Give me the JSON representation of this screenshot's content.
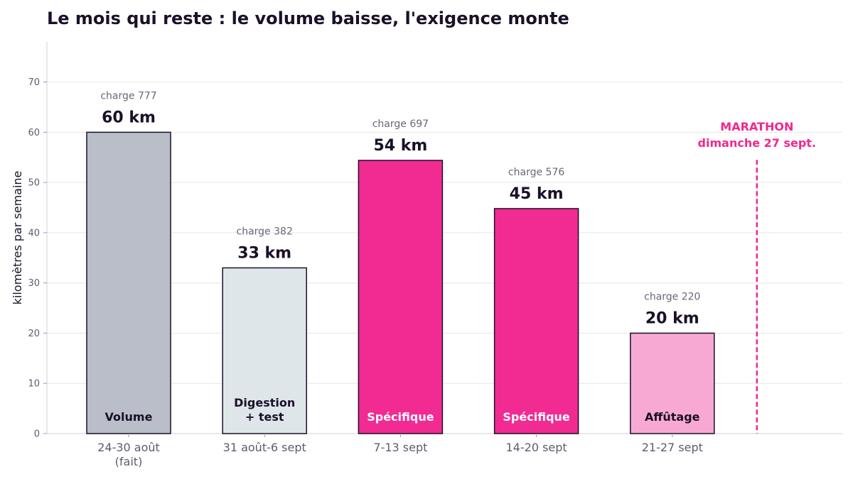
{
  "chart_data": {
    "type": "bar",
    "title": "Le mois qui reste : le volume baisse, l'exigence monte",
    "ylabel": "kilomètres par semaine",
    "xlabel": "",
    "ylim": [
      0,
      78
    ],
    "yticks": [
      0,
      10,
      20,
      30,
      40,
      50,
      60,
      70
    ],
    "grid": true,
    "categories": [
      [
        "24-30 août",
        "(fait)"
      ],
      [
        "31 août-6 sept"
      ],
      [
        "7-13 sept"
      ],
      [
        "14-20 sept"
      ],
      [
        "21-27 sept"
      ]
    ],
    "values": [
      60,
      33,
      54.4,
      44.8,
      20
    ],
    "value_labels": [
      "60 km",
      "33 km",
      "54 km",
      "45 km",
      "20 km"
    ],
    "charge_labels": [
      "charge 777",
      "charge 382",
      "charge 697",
      "charge 576",
      "charge 220"
    ],
    "phase_labels": [
      [
        "Volume"
      ],
      [
        "Digestion",
        "+ test"
      ],
      [
        "Spécifique"
      ],
      [
        "Spécifique"
      ],
      [
        "Affûtage"
      ]
    ],
    "bar_colors": [
      "#b9bec8",
      "#dfe6ea",
      "#f22b93",
      "#f22b93",
      "#f8a9d3"
    ],
    "phase_text_colors": [
      "#1a1028",
      "#1a1028",
      "#ffffff",
      "#ffffff",
      "#1a1028"
    ],
    "edge_color": "#1a1028",
    "annotation": {
      "lines": [
        "MARATHON",
        "dimanche 27 sept."
      ],
      "color": "#f0288f"
    }
  }
}
